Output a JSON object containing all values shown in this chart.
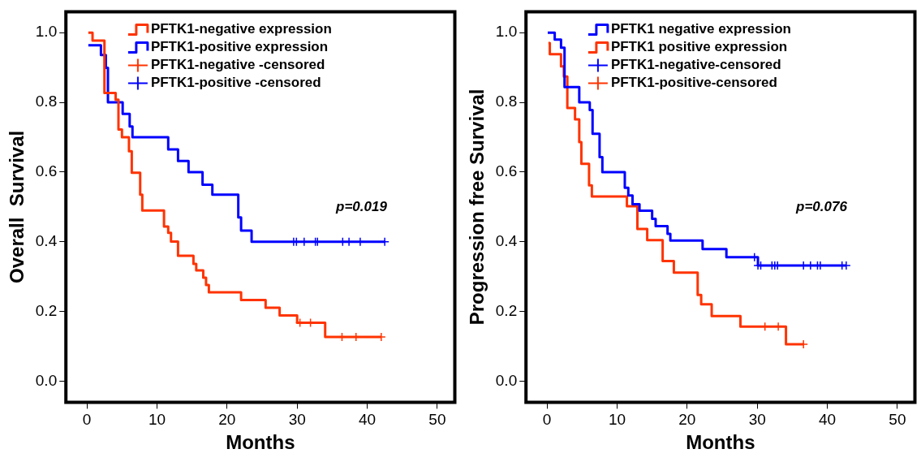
{
  "chart_data": [
    {
      "type": "step",
      "xlabel": "Months",
      "ylabel": "Overall  Survival",
      "xlim": [
        -3,
        52.5
      ],
      "xticks": [
        0,
        10,
        20,
        30,
        40,
        50
      ],
      "ylim": [
        -0.06,
        1.06
      ],
      "yticks": [
        {
          "value": 0,
          "label": "0.0"
        },
        {
          "value": 0.2,
          "label": "0.2"
        },
        {
          "value": 0.4,
          "label": "0.4"
        },
        {
          "value": 0.6,
          "label": "0.6"
        },
        {
          "value": 0.8,
          "label": "0.8"
        },
        {
          "value": 1,
          "label": "1.0"
        }
      ],
      "grid": false,
      "legend": "top",
      "annotations": [
        "p=0.019"
      ],
      "series": [
        {
          "name": "PFTK1-negative expression",
          "type": "step",
          "color": "#ff3300",
          "marker": "none",
          "x": [
            0.2,
            0.8,
            2.5,
            4.1,
            4.5,
            5.0,
            6.0,
            6.4,
            7.6,
            7.9,
            11.0,
            11.6,
            12.0,
            13.0,
            15.2,
            15.6,
            16.6,
            17.0,
            17.4,
            22.0,
            25.5,
            27.5,
            30.0,
            34.0,
            42.0
          ],
          "values": [
            1.0,
            0.977,
            0.827,
            0.808,
            0.722,
            0.7,
            0.66,
            0.598,
            0.535,
            0.49,
            0.444,
            0.426,
            0.401,
            0.36,
            0.337,
            0.318,
            0.297,
            0.276,
            0.255,
            0.233,
            0.211,
            0.189,
            0.168,
            0.127,
            0.127
          ]
        },
        {
          "name": "PFTK1-positive expression",
          "type": "step",
          "color": "#0000ff",
          "marker": "none",
          "x": [
            0.2,
            2.0,
            2.7,
            3.0,
            5.1,
            6.1,
            6.5,
            11.6,
            13.0,
            14.5,
            16.5,
            17.9,
            21.6,
            22.0,
            23.5,
            42.6
          ],
          "values": [
            0.964,
            0.936,
            0.899,
            0.8,
            0.767,
            0.731,
            0.7,
            0.665,
            0.632,
            0.6,
            0.564,
            0.535,
            0.47,
            0.432,
            0.4,
            0.4
          ]
        },
        {
          "name": "PFTK1-negative -censored",
          "type": "scatter",
          "color": "#ff3300",
          "marker": "cross",
          "x": [
            30.4,
            31.9,
            36.4,
            38.4,
            42.0
          ],
          "values": [
            0.168,
            0.168,
            0.127,
            0.127,
            0.127
          ]
        },
        {
          "name": "PFTK1-positive -censored",
          "type": "scatter",
          "color": "#0000ff",
          "marker": "cross",
          "x": [
            29.5,
            29.9,
            31.0,
            32.6,
            32.9,
            36.5,
            37.4,
            39.0,
            42.5
          ],
          "values": [
            0.4,
            0.4,
            0.4,
            0.4,
            0.4,
            0.4,
            0.4,
            0.4,
            0.4
          ]
        }
      ]
    },
    {
      "type": "step",
      "xlabel": "Months",
      "ylabel": "Progression free Survival",
      "xlim": [
        -3,
        52.5
      ],
      "xticks": [
        0,
        10,
        20,
        30,
        40,
        50
      ],
      "ylim": [
        -0.06,
        1.06
      ],
      "yticks": [
        {
          "value": 0,
          "label": "0.0"
        },
        {
          "value": 0.2,
          "label": "0.2"
        },
        {
          "value": 0.4,
          "label": "0.4"
        },
        {
          "value": 0.6,
          "label": "0.6"
        },
        {
          "value": 0.8,
          "label": "0.8"
        },
        {
          "value": 1,
          "label": "1.0"
        }
      ],
      "grid": false,
      "legend": "top",
      "annotations": [
        "p=0.076"
      ],
      "series": [
        {
          "name": "PFTK1 negative expression",
          "type": "step",
          "color": "#0000ff",
          "marker": "none",
          "x": [
            0.1,
            1.1,
            2.0,
            2.5,
            4.6,
            6.1,
            6.5,
            7.5,
            7.9,
            11.1,
            11.6,
            12.2,
            13.2,
            15.0,
            15.5,
            17.2,
            17.6,
            22.2,
            25.6,
            30.1,
            42.7
          ],
          "values": [
            1.0,
            0.98,
            0.957,
            0.844,
            0.8,
            0.778,
            0.71,
            0.643,
            0.6,
            0.555,
            0.533,
            0.508,
            0.489,
            0.466,
            0.445,
            0.423,
            0.404,
            0.379,
            0.356,
            0.332,
            0.332
          ]
        },
        {
          "name": "PFTK1 positive expression",
          "type": "step",
          "color": "#ff3300",
          "marker": "none",
          "x": [
            0.2,
            0.4,
            2.0,
            2.4,
            2.9,
            4.0,
            4.6,
            4.9,
            6.0,
            6.4,
            11.4,
            12.9,
            14.3,
            16.5,
            18.1,
            21.5,
            22.0,
            23.5,
            27.6,
            34.1,
            36.7
          ],
          "values": [
            0.97,
            0.938,
            0.903,
            0.874,
            0.784,
            0.751,
            0.686,
            0.624,
            0.562,
            0.53,
            0.502,
            0.437,
            0.405,
            0.345,
            0.312,
            0.248,
            0.221,
            0.187,
            0.157,
            0.106,
            0.106
          ]
        },
        {
          "name": "PFTK1-negative-censored",
          "type": "scatter",
          "color": "#0000ff",
          "marker": "cross",
          "x": [
            29.6,
            30.1,
            30.5,
            32.1,
            32.5,
            32.9,
            36.6,
            37.6,
            38.6,
            39.0,
            42.1,
            42.7
          ],
          "values": [
            0.356,
            0.332,
            0.332,
            0.332,
            0.332,
            0.332,
            0.332,
            0.332,
            0.332,
            0.332,
            0.332,
            0.332
          ]
        },
        {
          "name": "PFTK1-positive-censored",
          "type": "scatter",
          "color": "#ff3300",
          "marker": "cross",
          "x": [
            31.1,
            33.0,
            36.6
          ],
          "values": [
            0.157,
            0.157,
            0.106
          ]
        }
      ]
    }
  ]
}
